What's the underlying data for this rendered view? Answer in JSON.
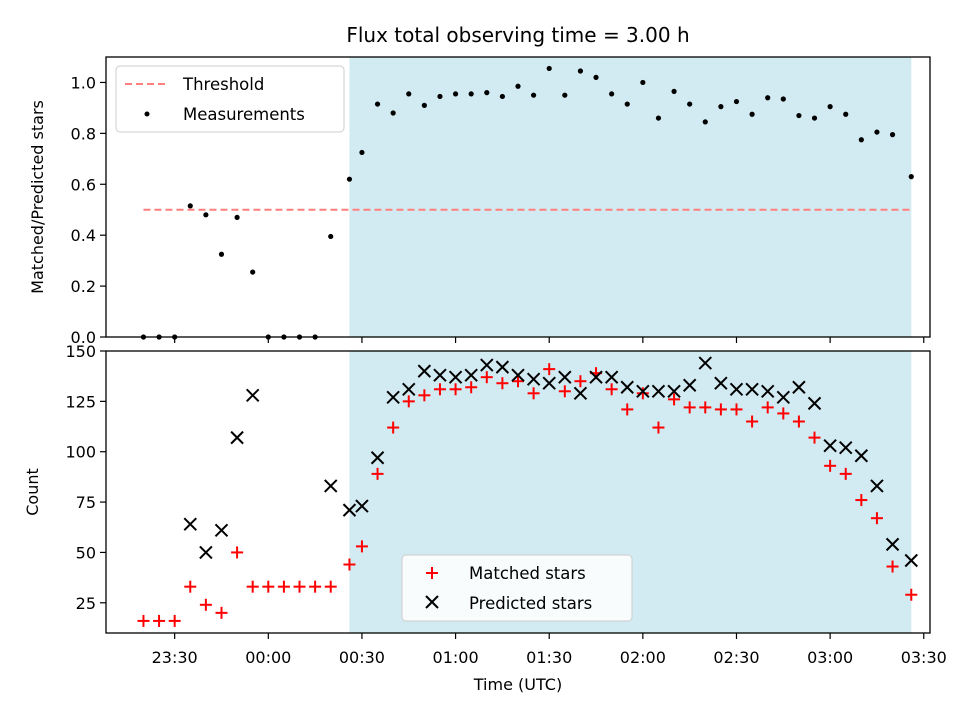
{
  "chart_data": {
    "type": "scatter",
    "title": "Flux total observing time = 3.00 h",
    "xlabel": "Time (UTC)",
    "x_ticks": [
      "23:30",
      "00:00",
      "00:30",
      "01:00",
      "01:30",
      "02:00",
      "02:30",
      "03:00",
      "03:30"
    ],
    "x_tick_minutes": [
      -30,
      0,
      30,
      60,
      90,
      120,
      150,
      180,
      210
    ],
    "xlim_minutes": [
      -52,
      212
    ],
    "observing_window_minutes": [
      26,
      206
    ],
    "window_color": "#add8e6",
    "top": {
      "ylabel": "Matched/Predicted stars",
      "ylim": [
        0,
        1.1
      ],
      "y_ticks": [
        "0.0",
        "0.2",
        "0.4",
        "0.6",
        "0.8",
        "1.0"
      ],
      "y_tick_values": [
        0,
        0.2,
        0.4,
        0.6,
        0.8,
        1.0
      ],
      "threshold": {
        "name": "Threshold",
        "value": 0.5,
        "x_range": [
          -40,
          206
        ],
        "color": "#ff7f7f"
      },
      "series": [
        {
          "name": "Measurements",
          "color": "#000000",
          "x": [
            -40,
            -35,
            -30,
            -25,
            -20,
            -15,
            -10,
            -5,
            0,
            5,
            10,
            15,
            20,
            26,
            30,
            35,
            40,
            45,
            50,
            55,
            60,
            65,
            70,
            75,
            80,
            85,
            90,
            95,
            100,
            105,
            110,
            115,
            120,
            125,
            130,
            135,
            140,
            145,
            150,
            155,
            160,
            165,
            170,
            175,
            180,
            185,
            190,
            195,
            200,
            206
          ],
          "y": [
            0,
            0,
            0,
            0.515,
            0.48,
            0.325,
            0.47,
            0.255,
            0,
            0,
            0,
            0,
            0.395,
            0.62,
            0.725,
            0.915,
            0.88,
            0.955,
            0.91,
            0.945,
            0.955,
            0.955,
            0.96,
            0.945,
            0.985,
            0.95,
            1.055,
            0.95,
            1.045,
            1.02,
            0.955,
            0.915,
            1.0,
            0.86,
            0.965,
            0.915,
            0.845,
            0.905,
            0.925,
            0.875,
            0.94,
            0.935,
            0.87,
            0.86,
            0.905,
            0.875,
            0.775,
            0.805,
            0.795,
            0.63
          ]
        }
      ],
      "legend": [
        "Threshold",
        "Measurements"
      ]
    },
    "bottom": {
      "ylabel": "Count",
      "ylim": [
        10,
        150
      ],
      "y_ticks": [
        "25",
        "50",
        "75",
        "100",
        "125",
        "150"
      ],
      "y_tick_values": [
        25,
        50,
        75,
        100,
        125,
        150
      ],
      "series": [
        {
          "name": "Matched stars",
          "marker": "plus",
          "color": "#ff0000",
          "x": [
            -40,
            -35,
            -30,
            -25,
            -20,
            -15,
            -10,
            -5,
            0,
            5,
            10,
            15,
            20,
            26,
            30,
            35,
            40,
            45,
            50,
            55,
            60,
            65,
            70,
            75,
            80,
            85,
            90,
            95,
            100,
            105,
            110,
            115,
            120,
            125,
            130,
            135,
            140,
            145,
            150,
            155,
            160,
            165,
            170,
            175,
            180,
            185,
            190,
            195,
            200,
            206
          ],
          "y": [
            16,
            16,
            16,
            33,
            24,
            20,
            50,
            33,
            33,
            33,
            33,
            33,
            33,
            44,
            53,
            89,
            112,
            125,
            128,
            131,
            131,
            132,
            137,
            134,
            135,
            129,
            141,
            130,
            135,
            139,
            131,
            121,
            129,
            112,
            126,
            122,
            122,
            121,
            121,
            115,
            122,
            119,
            115,
            107,
            93,
            89,
            76,
            67,
            43,
            29
          ]
        },
        {
          "name": "Predicted stars",
          "marker": "x",
          "color": "#000000",
          "x": [
            -25,
            -20,
            -15,
            -10,
            -5,
            20,
            26,
            30,
            35,
            40,
            45,
            50,
            55,
            60,
            65,
            70,
            75,
            80,
            85,
            90,
            95,
            100,
            105,
            110,
            115,
            120,
            125,
            130,
            135,
            140,
            145,
            150,
            155,
            160,
            165,
            170,
            175,
            180,
            185,
            190,
            195,
            200,
            206
          ],
          "y": [
            64,
            50,
            61,
            107,
            128,
            83,
            71,
            73,
            97,
            127,
            131,
            140,
            138,
            137,
            138,
            143,
            142,
            138,
            136,
            134,
            137,
            129,
            137,
            137,
            132,
            130,
            130,
            130,
            133,
            144,
            134,
            131,
            131,
            130,
            127,
            132,
            124,
            103,
            102,
            98,
            83,
            54,
            46
          ]
        }
      ],
      "legend": [
        "Matched stars",
        "Predicted stars"
      ]
    }
  }
}
